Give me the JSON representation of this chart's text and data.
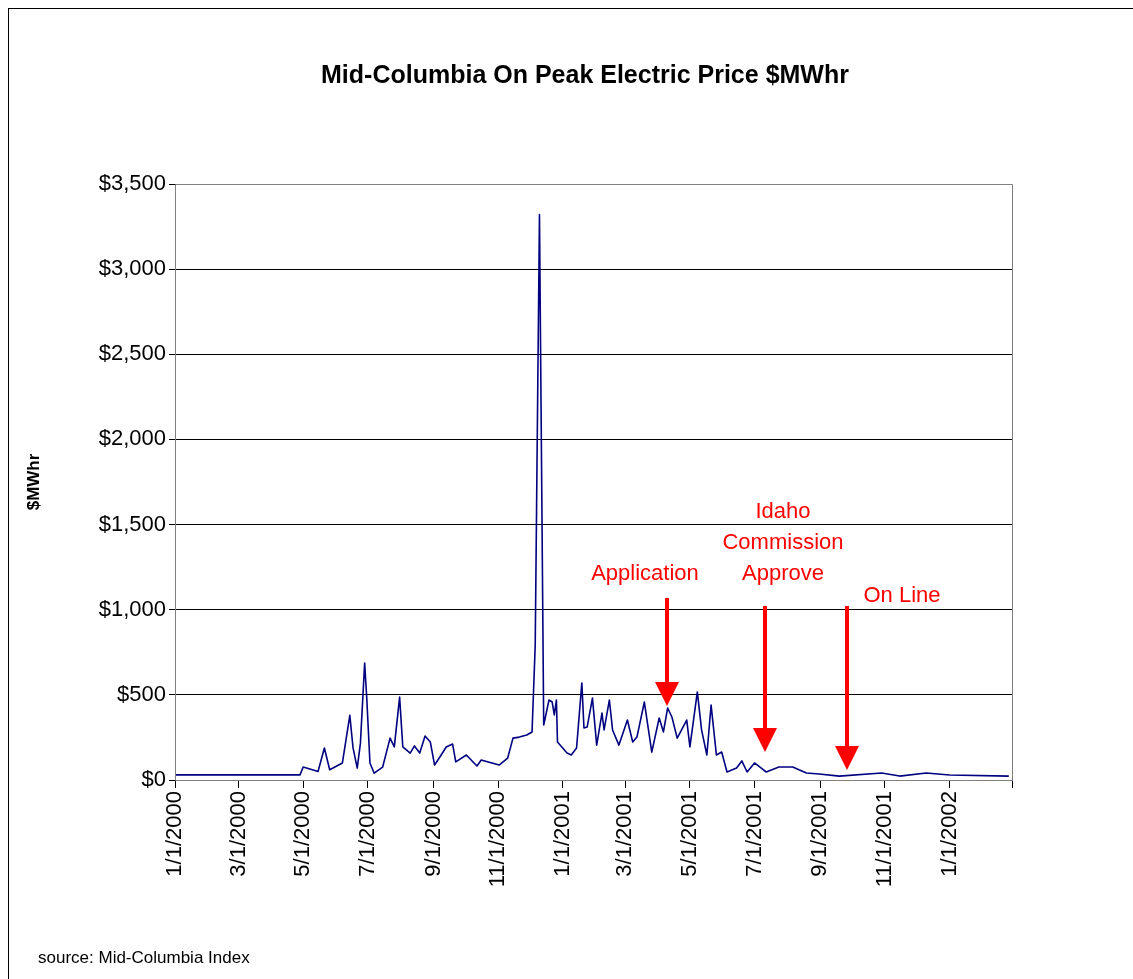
{
  "chart_data": {
    "type": "line",
    "title": "Mid-Columbia On Peak Electric Price $MWhr",
    "ylabel": "$MWhr",
    "x": [
      "2000-01-01",
      "2000-04-28",
      "2000-05-01",
      "2000-05-15",
      "2000-05-21",
      "2000-05-26",
      "2000-06-07",
      "2000-06-14",
      "2000-06-17",
      "2000-06-21",
      "2000-06-24",
      "2000-06-28",
      "2000-06-30",
      "2000-07-03",
      "2000-07-07",
      "2000-07-15",
      "2000-07-22",
      "2000-07-26",
      "2000-07-31",
      "2000-08-03",
      "2000-08-10",
      "2000-08-14",
      "2000-08-19",
      "2000-08-24",
      "2000-08-29",
      "2000-09-02",
      "2000-09-07",
      "2000-09-13",
      "2000-09-19",
      "2000-09-22",
      "2000-10-02",
      "2000-10-12",
      "2000-10-16",
      "2000-11-02",
      "2000-11-10",
      "2000-11-15",
      "2000-11-21",
      "2000-11-28",
      "2000-12-03",
      "2000-12-06",
      "2000-12-10",
      "2000-12-14",
      "2000-12-19",
      "2000-12-22",
      "2000-12-24",
      "2000-12-26",
      "2000-12-27",
      "2001-01-05",
      "2001-01-09",
      "2001-01-14",
      "2001-01-19",
      "2001-01-21",
      "2001-01-24",
      "2001-01-29",
      "2001-02-02",
      "2001-02-07",
      "2001-02-09",
      "2001-02-14",
      "2001-02-17",
      "2001-02-23",
      "2001-03-03",
      "2001-03-08",
      "2001-03-12",
      "2001-03-19",
      "2001-03-26",
      "2001-04-02",
      "2001-04-06",
      "2001-04-10",
      "2001-04-14",
      "2001-04-19",
      "2001-04-28",
      "2001-05-01",
      "2001-05-08",
      "2001-05-12",
      "2001-05-17",
      "2001-05-21",
      "2001-05-26",
      "2001-05-31",
      "2001-06-05",
      "2001-06-14",
      "2001-06-19",
      "2001-06-24",
      "2001-07-01",
      "2001-07-12",
      "2001-07-24",
      "2001-08-06",
      "2001-08-19",
      "2001-08-31",
      "2001-09-19",
      "2001-10-29",
      "2001-11-15",
      "2001-12-10",
      "2002-01-01",
      "2002-02-26"
    ],
    "series": [
      {
        "color": "#000080",
        "values": [
          30,
          30,
          76,
          50,
          188,
          60,
          100,
          380,
          190,
          70,
          215,
          687,
          480,
          100,
          40,
          76,
          246,
          195,
          487,
          195,
          158,
          200,
          158,
          258,
          223,
          88,
          135,
          194,
          211,
          106,
          147,
          82,
          117,
          88,
          129,
          246,
          252,
          264,
          282,
          793,
          3320,
          323,
          470,
          458,
          382,
          470,
          223,
          158,
          147,
          188,
          570,
          305,
          311,
          481,
          205,
          393,
          294,
          470,
          294,
          205,
          352,
          223,
          252,
          458,
          164,
          364,
          282,
          423,
          370,
          246,
          352,
          194,
          517,
          294,
          147,
          440,
          147,
          164,
          47,
          70,
          112,
          47,
          100,
          47,
          76,
          76,
          41,
          35,
          23,
          41,
          23,
          41,
          29,
          23
        ]
      }
    ],
    "xlim": [
      "2000-01-01",
      "2002-03-01"
    ],
    "xticks": [
      {
        "value": "2000-01-01",
        "label": "1/1/2000"
      },
      {
        "value": "2000-03-01",
        "label": "3/1/2000"
      },
      {
        "value": "2000-05-01",
        "label": "5/1/2000"
      },
      {
        "value": "2000-07-01",
        "label": "7/1/2000"
      },
      {
        "value": "2000-09-01",
        "label": "9/1/2000"
      },
      {
        "value": "2000-11-01",
        "label": "11/1/2000"
      },
      {
        "value": "2001-01-01",
        "label": "1/1/2001"
      },
      {
        "value": "2001-03-01",
        "label": "3/1/2001"
      },
      {
        "value": "2001-05-01",
        "label": "5/1/2001"
      },
      {
        "value": "2001-07-01",
        "label": "7/1/2001"
      },
      {
        "value": "2001-09-01",
        "label": "9/1/2001"
      },
      {
        "value": "2001-11-01",
        "label": "11/1/2001"
      },
      {
        "value": "2002-01-01",
        "label": "1/1/2002"
      },
      {
        "value": "2002-03-01",
        "label": null
      }
    ],
    "ylim": [
      0,
      3500
    ],
    "yticks": [
      {
        "value": 0,
        "label": "$0"
      },
      {
        "value": 500,
        "label": "$500"
      },
      {
        "value": 1000,
        "label": "$1,000"
      },
      {
        "value": 1500,
        "label": "$1,500"
      },
      {
        "value": 2000,
        "label": "$2,000"
      },
      {
        "value": 2500,
        "label": "$2,500"
      },
      {
        "value": 3000,
        "label": "$3,000"
      },
      {
        "value": 3500,
        "label": "$3,500"
      }
    ],
    "grid": "y",
    "legend": false,
    "marker": "none",
    "line_style": "solid",
    "annotations": [
      "Application",
      "Idaho Commission Approve",
      "On Line",
      "source: Mid-Columbia Index"
    ]
  }
}
